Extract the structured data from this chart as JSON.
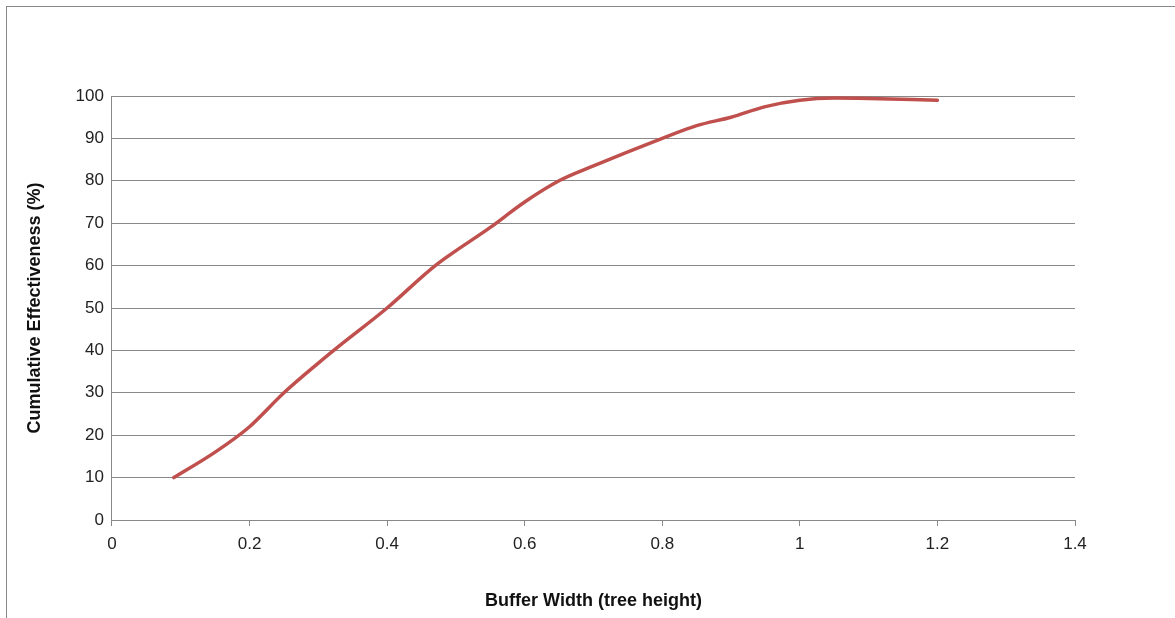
{
  "chart_data": {
    "type": "line",
    "xlabel": "Buffer Width (tree height)",
    "ylabel": "Cumulative Effectiveness (%)",
    "x": [
      0.09,
      0.15,
      0.2,
      0.25,
      0.3,
      0.33,
      0.4,
      0.47,
      0.55,
      0.6,
      0.65,
      0.7,
      0.8,
      0.85,
      0.9,
      0.95,
      1.0,
      1.05,
      1.1,
      1.2
    ],
    "series": [
      {
        "color": "#c0504d",
        "values": [
          10,
          16,
          22,
          30,
          37,
          41,
          50,
          60,
          69,
          75,
          80,
          83.5,
          90,
          93,
          95,
          97.5,
          99,
          99.5,
          99.4,
          99
        ]
      }
    ],
    "xlim": [
      0,
      1.4
    ],
    "xticks": [
      0,
      0.2,
      0.4,
      0.6,
      0.8,
      1,
      1.2,
      1.4
    ],
    "ylim": [
      0,
      100
    ],
    "yticks": [
      0,
      10,
      20,
      30,
      40,
      50,
      60,
      70,
      80,
      90,
      100
    ],
    "grid": "y",
    "legend": false,
    "marker": "none",
    "line_style": "solid"
  }
}
